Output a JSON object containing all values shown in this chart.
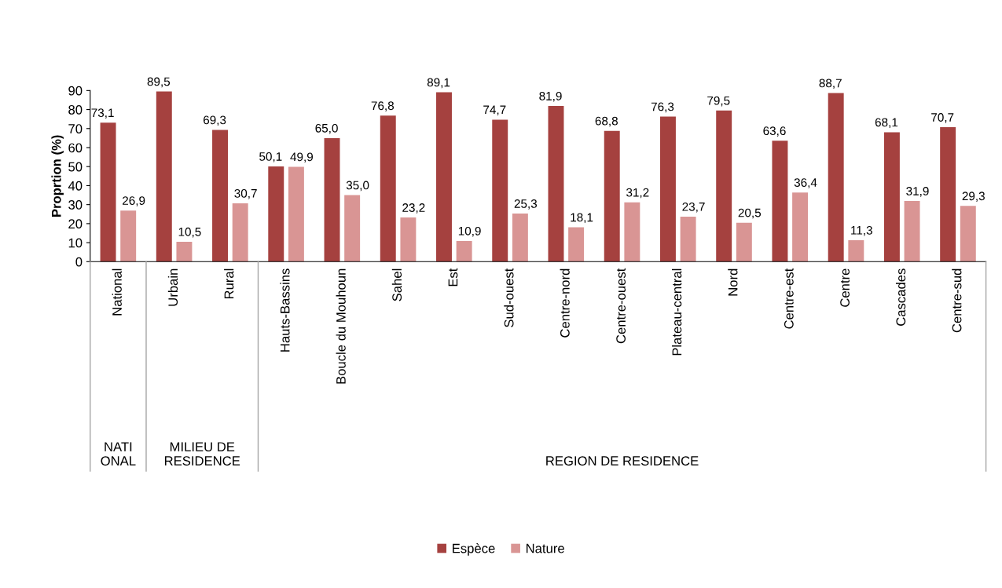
{
  "chart_data": {
    "type": "bar",
    "ylabel": "Proprtion (%)",
    "categories": [
      "National",
      "Urbain",
      "Rural",
      "Hauts-Bassins",
      "Boucle du Mouhoun",
      "Sahel",
      "Est",
      "Sud-ouest",
      "Centre-nord",
      "Centre-ouest",
      "Plateau-central",
      "Nord",
      "Centre-est",
      "Centre",
      "Cascades",
      "Centre-sud"
    ],
    "series": [
      {
        "name": "Espèce",
        "color": "#a5413f",
        "values": [
          73.1,
          89.5,
          69.3,
          50.1,
          65.0,
          76.8,
          89.1,
          74.7,
          81.9,
          68.8,
          76.3,
          79.5,
          63.6,
          88.7,
          68.1,
          70.7
        ],
        "value_labels": [
          "73,1",
          "89,5",
          "69,3",
          "50,1",
          "65,0",
          "76,8",
          "89,1",
          "74,7",
          "81,9",
          "68,8",
          "76,3",
          "79,5",
          "63,6",
          "88,7",
          "68,1",
          "70,7"
        ]
      },
      {
        "name": "Nature",
        "color": "#d99594",
        "values": [
          26.9,
          10.5,
          30.7,
          49.9,
          35.0,
          23.2,
          10.9,
          25.3,
          18.1,
          31.2,
          23.7,
          20.5,
          36.4,
          11.3,
          31.9,
          29.3
        ],
        "value_labels": [
          "26,9",
          "10,5",
          "30,7",
          "49,9",
          "35,0",
          "23,2",
          "10,9",
          "25,3",
          "18,1",
          "31,2",
          "23,7",
          "20,5",
          "36,4",
          "11,3",
          "31,9",
          "29,3"
        ]
      }
    ],
    "ylim": [
      0,
      90
    ],
    "yticks": [
      0,
      10,
      20,
      30,
      40,
      50,
      60,
      70,
      80,
      90
    ],
    "grid": false,
    "legend": "bottom",
    "annotations": [
      "NATI\nONAL",
      "MILIEU DE\nRESIDENCE",
      "REGION DE RESIDENCE"
    ]
  }
}
